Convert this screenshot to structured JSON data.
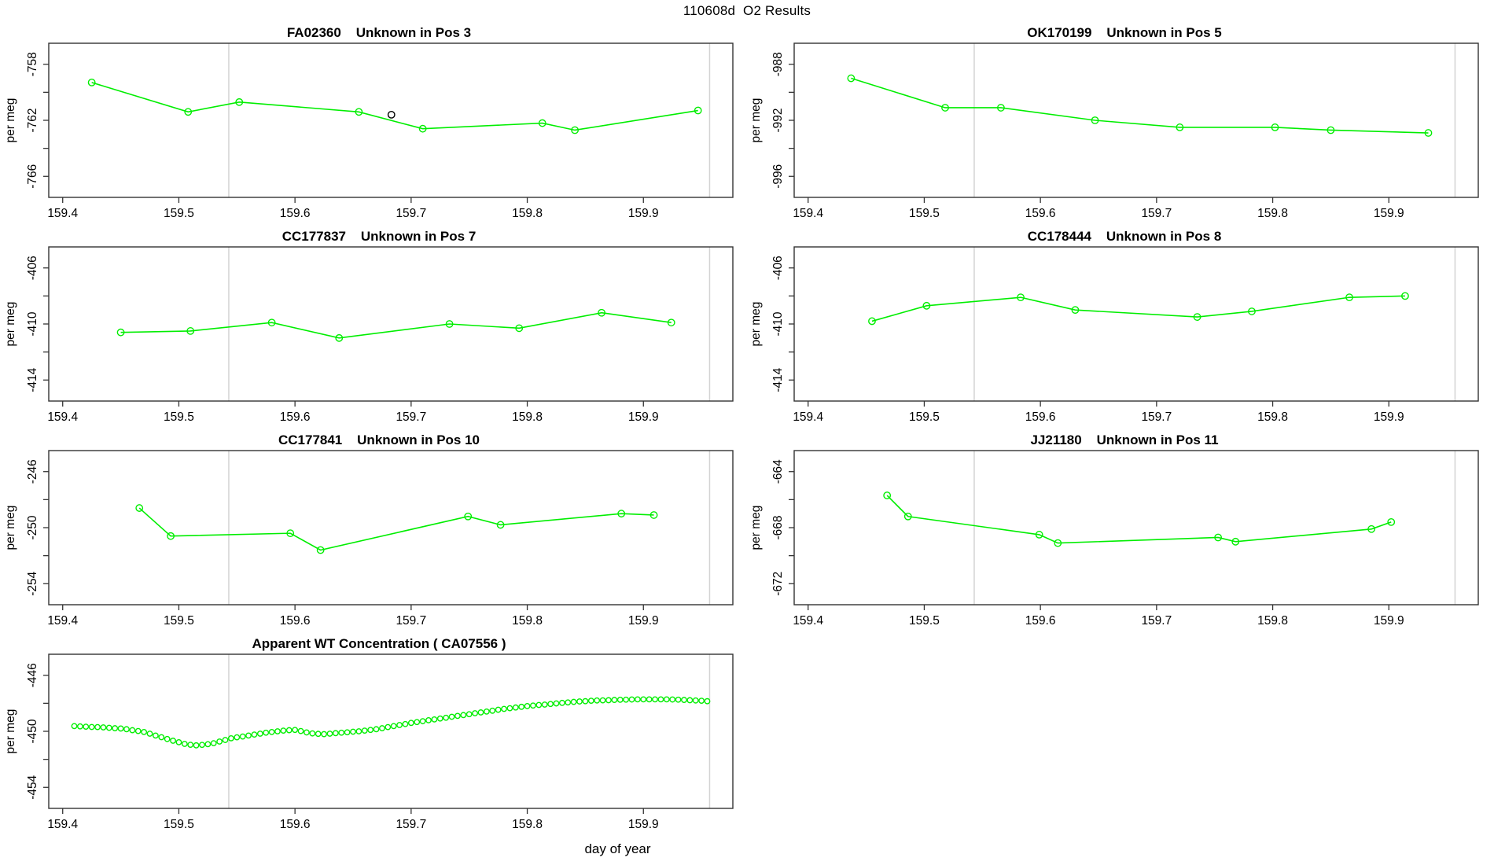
{
  "page_title": "110608d  O2 Results",
  "x_axis": {
    "label": "day of year",
    "ticks": [
      159.4,
      159.5,
      159.6,
      159.7,
      159.8,
      159.9
    ],
    "domain": [
      159.388,
      159.977
    ],
    "guide_lines": [
      159.543,
      159.957
    ]
  },
  "y_axis_label": "per meg",
  "colors": {
    "series": "#00ee00",
    "outlier": "#000000",
    "guide": "#d3d3d3",
    "box": "#333333",
    "text": "#000000"
  },
  "chart_data": [
    {
      "type": "line",
      "title": "FA02360    Unknown in Pos 3",
      "sample_id": "FA02360",
      "position_label": "Unknown in Pos 3",
      "ylabel": "per meg",
      "y_domain": [
        -756.5,
        -767.5
      ],
      "y_ticks": [
        -758,
        -760,
        -762,
        -764,
        -766
      ],
      "y_labeled_ticks": [
        -758,
        -762,
        -766
      ],
      "points": [
        [
          159.425,
          -759.3
        ],
        [
          159.508,
          -761.4
        ],
        [
          159.552,
          -760.7
        ],
        [
          159.655,
          -761.4
        ],
        [
          159.71,
          -762.6
        ],
        [
          159.813,
          -762.2
        ],
        [
          159.841,
          -762.7
        ],
        [
          159.947,
          -761.3
        ]
      ],
      "outlier_points": [
        [
          159.683,
          -761.6
        ]
      ]
    },
    {
      "type": "line",
      "title": "OK170199    Unknown in Pos 5",
      "sample_id": "OK170199",
      "position_label": "Unknown in Pos 5",
      "ylabel": "per meg",
      "y_domain": [
        -986.5,
        -997.5
      ],
      "y_ticks": [
        -988,
        -990,
        -992,
        -994,
        -996
      ],
      "y_labeled_ticks": [
        -988,
        -992,
        -996
      ],
      "points": [
        [
          159.437,
          -989.0
        ],
        [
          159.518,
          -991.1
        ],
        [
          159.566,
          -991.1
        ],
        [
          159.647,
          -992.0
        ],
        [
          159.72,
          -992.5
        ],
        [
          159.802,
          -992.5
        ],
        [
          159.85,
          -992.7
        ],
        [
          159.934,
          -992.9
        ]
      ],
      "outlier_points": []
    },
    {
      "type": "line",
      "title": "CC177837    Unknown in Pos 7",
      "sample_id": "CC177837",
      "position_label": "Unknown in Pos 7",
      "ylabel": "per meg",
      "y_domain": [
        -404.5,
        -415.5
      ],
      "y_ticks": [
        -406,
        -408,
        -410,
        -412,
        -414
      ],
      "y_labeled_ticks": [
        -406,
        -410,
        -414
      ],
      "points": [
        [
          159.45,
          -410.6
        ],
        [
          159.51,
          -410.5
        ],
        [
          159.58,
          -409.9
        ],
        [
          159.638,
          -411.0
        ],
        [
          159.733,
          -410.0
        ],
        [
          159.793,
          -410.3
        ],
        [
          159.864,
          -409.2
        ],
        [
          159.924,
          -409.9
        ]
      ],
      "outlier_points": []
    },
    {
      "type": "line",
      "title": "CC178444    Unknown in Pos 8",
      "sample_id": "CC178444",
      "position_label": "Unknown in Pos 8",
      "ylabel": "per meg",
      "y_domain": [
        -404.5,
        -415.5
      ],
      "y_ticks": [
        -406,
        -408,
        -410,
        -412,
        -414
      ],
      "y_labeled_ticks": [
        -406,
        -410,
        -414
      ],
      "points": [
        [
          159.455,
          -409.8
        ],
        [
          159.502,
          -408.7
        ],
        [
          159.583,
          -408.1
        ],
        [
          159.63,
          -409.0
        ],
        [
          159.735,
          -409.5
        ],
        [
          159.782,
          -409.1
        ],
        [
          159.866,
          -408.1
        ],
        [
          159.914,
          -408.0
        ]
      ],
      "outlier_points": []
    },
    {
      "type": "line",
      "title": "CC177841    Unknown in Pos 10",
      "sample_id": "CC177841",
      "position_label": "Unknown in Pos 10",
      "ylabel": "per meg",
      "y_domain": [
        -244.5,
        -255.5
      ],
      "y_ticks": [
        -246,
        -248,
        -250,
        -252,
        -254
      ],
      "y_labeled_ticks": [
        -246,
        -250,
        -254
      ],
      "points": [
        [
          159.466,
          -248.6
        ],
        [
          159.493,
          -250.6
        ],
        [
          159.596,
          -250.4
        ],
        [
          159.622,
          -251.6
        ],
        [
          159.749,
          -249.2
        ],
        [
          159.777,
          -249.8
        ],
        [
          159.881,
          -249.0
        ],
        [
          159.909,
          -249.1
        ]
      ],
      "outlier_points": []
    },
    {
      "type": "line",
      "title": "JJ21180    Unknown in Pos 11",
      "sample_id": "JJ21180",
      "position_label": "Unknown in Pos 11",
      "ylabel": "per meg",
      "y_domain": [
        -662.5,
        -673.5
      ],
      "y_ticks": [
        -664,
        -666,
        -668,
        -670,
        -672
      ],
      "y_labeled_ticks": [
        -664,
        -668,
        -672
      ],
      "points": [
        [
          159.468,
          -665.7
        ],
        [
          159.486,
          -667.2
        ],
        [
          159.599,
          -668.5
        ],
        [
          159.615,
          -669.1
        ],
        [
          159.753,
          -668.7
        ],
        [
          159.768,
          -669.0
        ],
        [
          159.885,
          -668.1
        ],
        [
          159.902,
          -667.6
        ]
      ],
      "outlier_points": []
    },
    {
      "type": "scatter",
      "title": "Apparent WT Concentration ( CA07556 )",
      "sample_id": "CA07556",
      "position_label": "Apparent WT Concentration",
      "ylabel": "per meg",
      "y_domain": [
        -444.5,
        -455.5
      ],
      "y_ticks": [
        -446,
        -448,
        -450,
        -452,
        -454
      ],
      "y_labeled_ticks": [
        -446,
        -450,
        -454
      ],
      "points": [
        [
          159.41,
          -449.63
        ],
        [
          159.415,
          -449.65
        ],
        [
          159.42,
          -449.67
        ],
        [
          159.425,
          -449.69
        ],
        [
          159.43,
          -449.7
        ],
        [
          159.435,
          -449.72
        ],
        [
          159.44,
          -449.75
        ],
        [
          159.445,
          -449.78
        ],
        [
          159.45,
          -449.8
        ],
        [
          159.455,
          -449.85
        ],
        [
          159.46,
          -449.92
        ],
        [
          159.465,
          -449.98
        ],
        [
          159.47,
          -450.05
        ],
        [
          159.475,
          -450.17
        ],
        [
          159.48,
          -450.3
        ],
        [
          159.485,
          -450.42
        ],
        [
          159.49,
          -450.55
        ],
        [
          159.495,
          -450.67
        ],
        [
          159.5,
          -450.78
        ],
        [
          159.505,
          -450.9
        ],
        [
          159.51,
          -450.96
        ],
        [
          159.515,
          -451.0
        ],
        [
          159.52,
          -450.97
        ],
        [
          159.525,
          -450.92
        ],
        [
          159.53,
          -450.85
        ],
        [
          159.535,
          -450.73
        ],
        [
          159.54,
          -450.62
        ],
        [
          159.545,
          -450.5
        ],
        [
          159.55,
          -450.43
        ],
        [
          159.555,
          -450.37
        ],
        [
          159.56,
          -450.3
        ],
        [
          159.565,
          -450.23
        ],
        [
          159.57,
          -450.17
        ],
        [
          159.575,
          -450.1
        ],
        [
          159.58,
          -450.05
        ],
        [
          159.585,
          -450.0
        ],
        [
          159.59,
          -449.95
        ],
        [
          159.595,
          -449.92
        ],
        [
          159.6,
          -449.9
        ],
        [
          159.605,
          -449.98
        ],
        [
          159.61,
          -450.08
        ],
        [
          159.615,
          -450.15
        ],
        [
          159.62,
          -450.18
        ],
        [
          159.625,
          -450.2
        ],
        [
          159.63,
          -450.17
        ],
        [
          159.635,
          -450.13
        ],
        [
          159.64,
          -450.1
        ],
        [
          159.645,
          -450.07
        ],
        [
          159.65,
          -450.03
        ],
        [
          159.655,
          -450.0
        ],
        [
          159.66,
          -449.95
        ],
        [
          159.665,
          -449.9
        ],
        [
          159.67,
          -449.85
        ],
        [
          159.675,
          -449.78
        ],
        [
          159.68,
          -449.7
        ],
        [
          159.685,
          -449.63
        ],
        [
          159.69,
          -449.55
        ],
        [
          159.695,
          -449.48
        ],
        [
          159.7,
          -449.4
        ],
        [
          159.705,
          -449.34
        ],
        [
          159.71,
          -449.28
        ],
        [
          159.715,
          -449.21
        ],
        [
          159.72,
          -449.15
        ],
        [
          159.725,
          -449.09
        ],
        [
          159.73,
          -449.03
        ],
        [
          159.735,
          -448.96
        ],
        [
          159.74,
          -448.9
        ],
        [
          159.745,
          -448.84
        ],
        [
          159.75,
          -448.78
        ],
        [
          159.755,
          -448.71
        ],
        [
          159.76,
          -448.65
        ],
        [
          159.765,
          -448.59
        ],
        [
          159.77,
          -448.53
        ],
        [
          159.775,
          -448.46
        ],
        [
          159.78,
          -448.4
        ],
        [
          159.785,
          -448.35
        ],
        [
          159.79,
          -448.3
        ],
        [
          159.795,
          -448.25
        ],
        [
          159.8,
          -448.2
        ],
        [
          159.805,
          -448.16
        ],
        [
          159.81,
          -448.12
        ],
        [
          159.815,
          -448.09
        ],
        [
          159.82,
          -448.05
        ],
        [
          159.825,
          -448.01
        ],
        [
          159.83,
          -447.97
        ],
        [
          159.835,
          -447.94
        ],
        [
          159.84,
          -447.9
        ],
        [
          159.845,
          -447.87
        ],
        [
          159.85,
          -447.85
        ],
        [
          159.855,
          -447.82
        ],
        [
          159.86,
          -447.8
        ],
        [
          159.865,
          -447.79
        ],
        [
          159.87,
          -447.78
        ],
        [
          159.875,
          -447.76
        ],
        [
          159.88,
          -447.75
        ],
        [
          159.885,
          -447.74
        ],
        [
          159.89,
          -447.73
        ],
        [
          159.895,
          -447.72
        ],
        [
          159.9,
          -447.72
        ],
        [
          159.905,
          -447.72
        ],
        [
          159.91,
          -447.72
        ],
        [
          159.915,
          -447.72
        ],
        [
          159.92,
          -447.72
        ],
        [
          159.925,
          -447.73
        ],
        [
          159.93,
          -447.74
        ],
        [
          159.935,
          -447.76
        ],
        [
          159.94,
          -447.78
        ],
        [
          159.945,
          -447.8
        ],
        [
          159.95,
          -447.82
        ],
        [
          159.955,
          -447.85
        ]
      ],
      "outlier_points": []
    }
  ]
}
